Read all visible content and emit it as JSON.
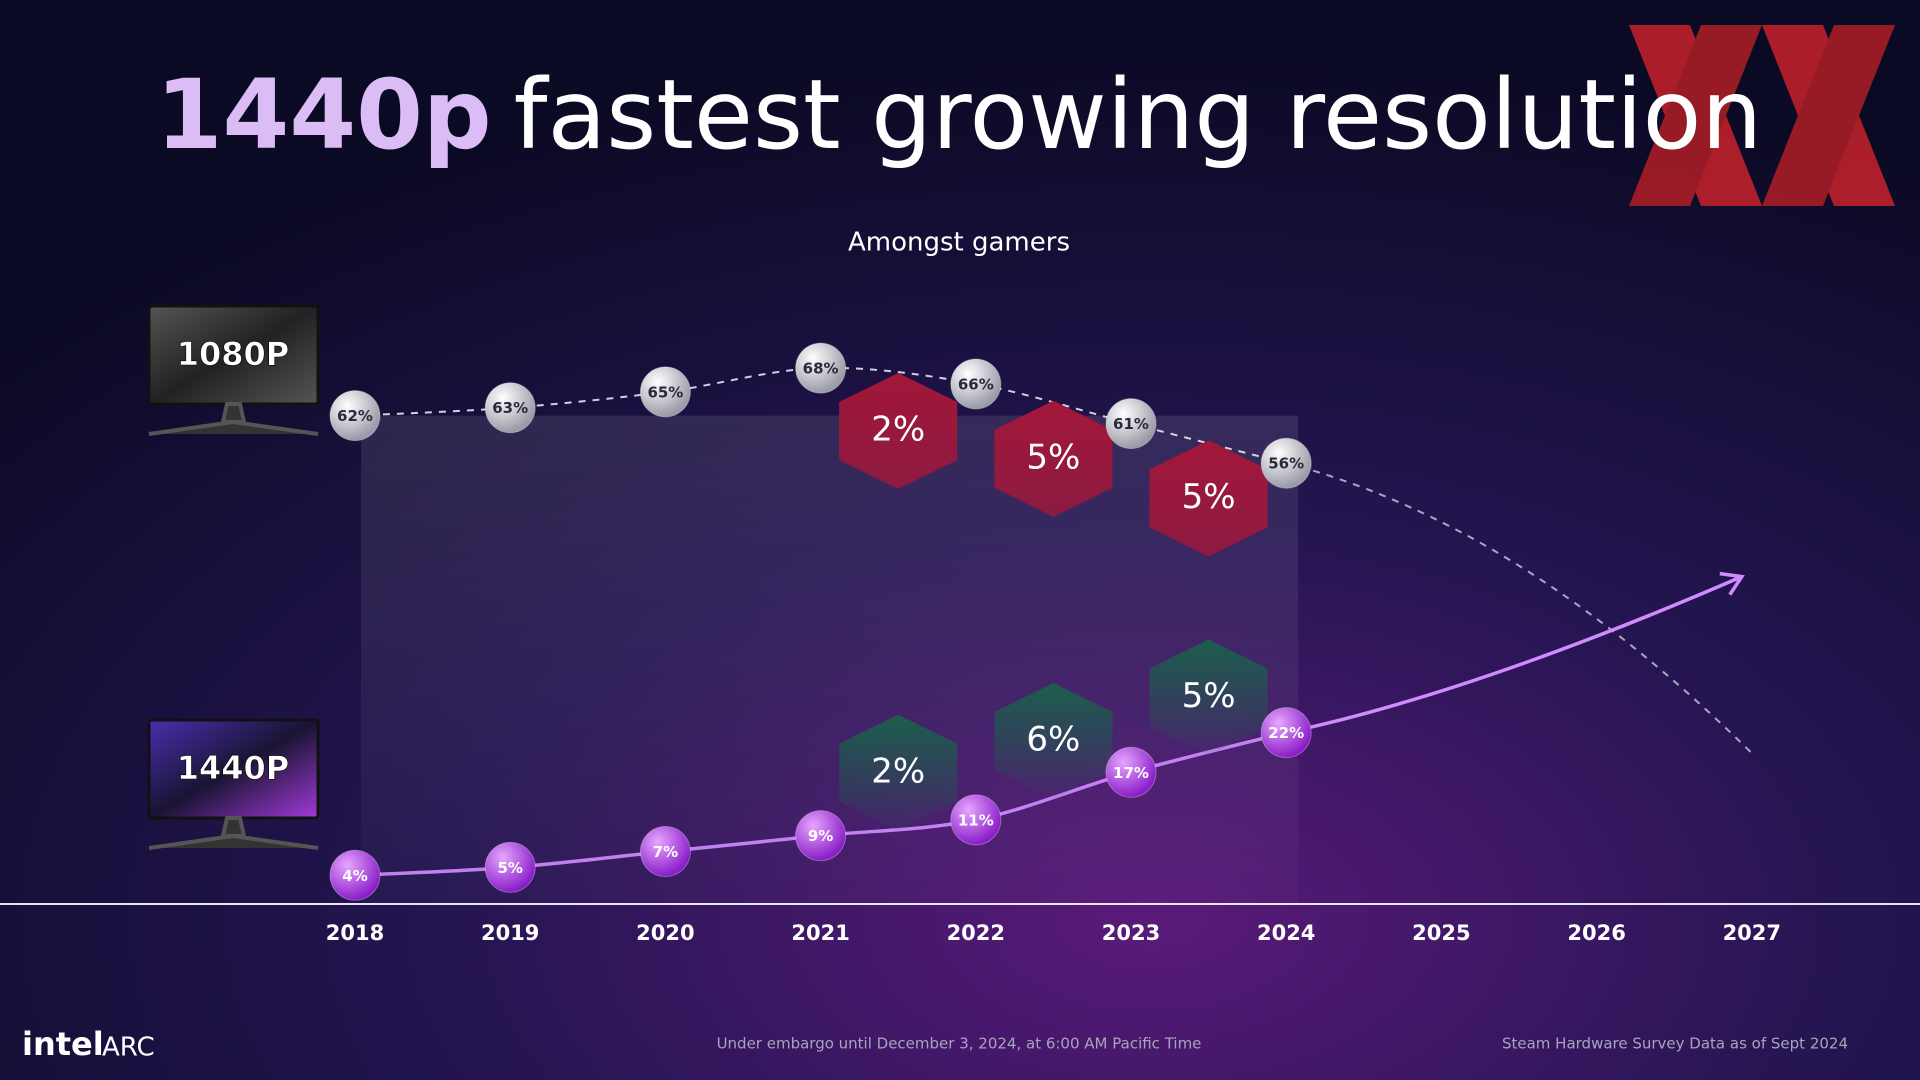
{
  "chart_data": {
    "type": "line",
    "title_highlight": "1440p",
    "title": "fastest growing resolution",
    "subtitle": "Amongst gamers",
    "categories": [
      "2018",
      "2019",
      "2020",
      "2021",
      "2022",
      "2023",
      "2024",
      "2025",
      "2026",
      "2027"
    ],
    "series": [
      {
        "name": "1080P",
        "color": "#e6e6ee",
        "dashed": true,
        "values": [
          62,
          63,
          65,
          68,
          66,
          61,
          56,
          null,
          null,
          null
        ],
        "value_labels": [
          "62%",
          "63%",
          "65%",
          "68%",
          "66%",
          "61%",
          "56%",
          null,
          null,
          null
        ]
      },
      {
        "name": "1440P",
        "color": "#d08cff",
        "dashed": false,
        "values": [
          4,
          5,
          7,
          9,
          11,
          17,
          22,
          null,
          null,
          null
        ],
        "value_labels": [
          "4%",
          "5%",
          "7%",
          "9%",
          "11%",
          "17%",
          "22%",
          null,
          null,
          null
        ]
      }
    ],
    "declines": {
      "color": "#a3173a",
      "values": [
        2,
        5,
        5
      ],
      "value_labels": [
        "2%",
        "5%",
        "5%"
      ]
    },
    "gains": {
      "color": "#1c5e4c",
      "values": [
        2,
        6,
        5
      ],
      "value_labels": [
        "2%",
        "6%",
        "5%"
      ]
    },
    "ylim": [
      0,
      80
    ],
    "footer": {
      "logo": "intel",
      "logo_suffix": "ARC",
      "embargo": "Under embargo until December 3, 2024, at 6:00 AM Pacific Time",
      "source": "Steam Hardware Survey Data as of Sept 2024"
    }
  }
}
